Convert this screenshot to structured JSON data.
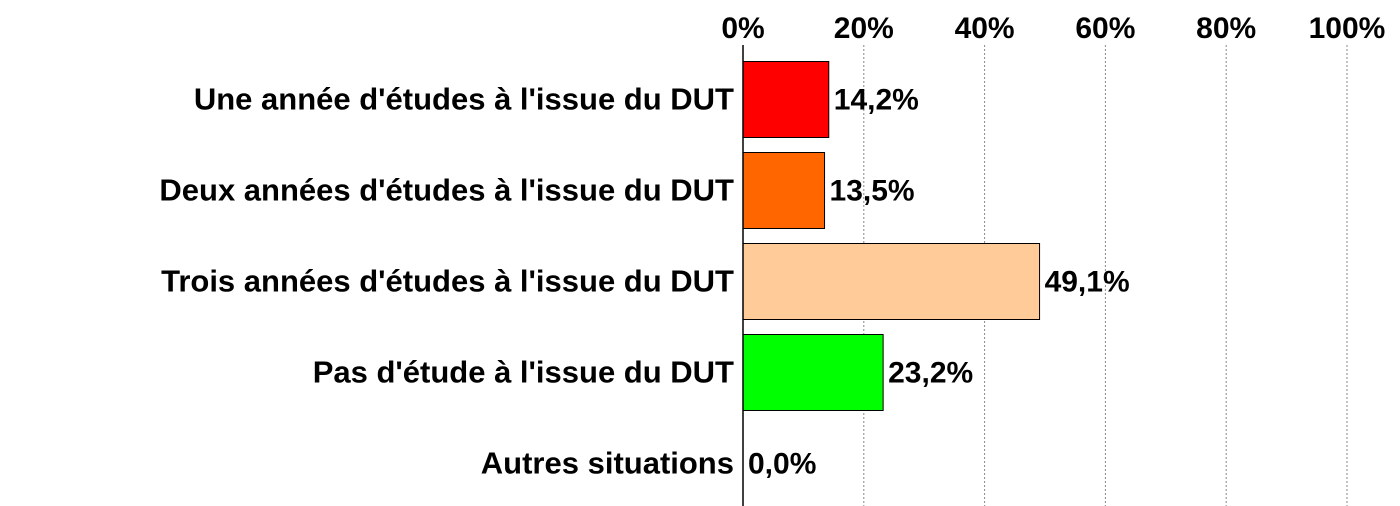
{
  "chart_data": {
    "type": "bar",
    "orientation": "horizontal",
    "categories": [
      "Une année d'études à l'issue du DUT",
      "Deux années d'études à l'issue du DUT",
      "Trois années d'études à l'issue du DUT",
      "Pas d'étude à l'issue du DUT",
      "Autres situations"
    ],
    "values": [
      14.2,
      13.5,
      49.1,
      23.2,
      0.0
    ],
    "value_labels": [
      "14,2%",
      "13,5%",
      "49,1%",
      "23,2%",
      "0,0%"
    ],
    "colors": [
      "#ff0000",
      "#ff6600",
      "#ffcc99",
      "#00ff00",
      "#999999"
    ],
    "xlim": [
      0,
      100
    ],
    "xticks": [
      {
        "value": 0,
        "label": "0%"
      },
      {
        "value": 20,
        "label": "20%"
      },
      {
        "value": 40,
        "label": "40%"
      },
      {
        "value": 60,
        "label": "60%"
      },
      {
        "value": 80,
        "label": "80%"
      },
      {
        "value": 100,
        "label": "100%"
      }
    ],
    "grid": true
  }
}
